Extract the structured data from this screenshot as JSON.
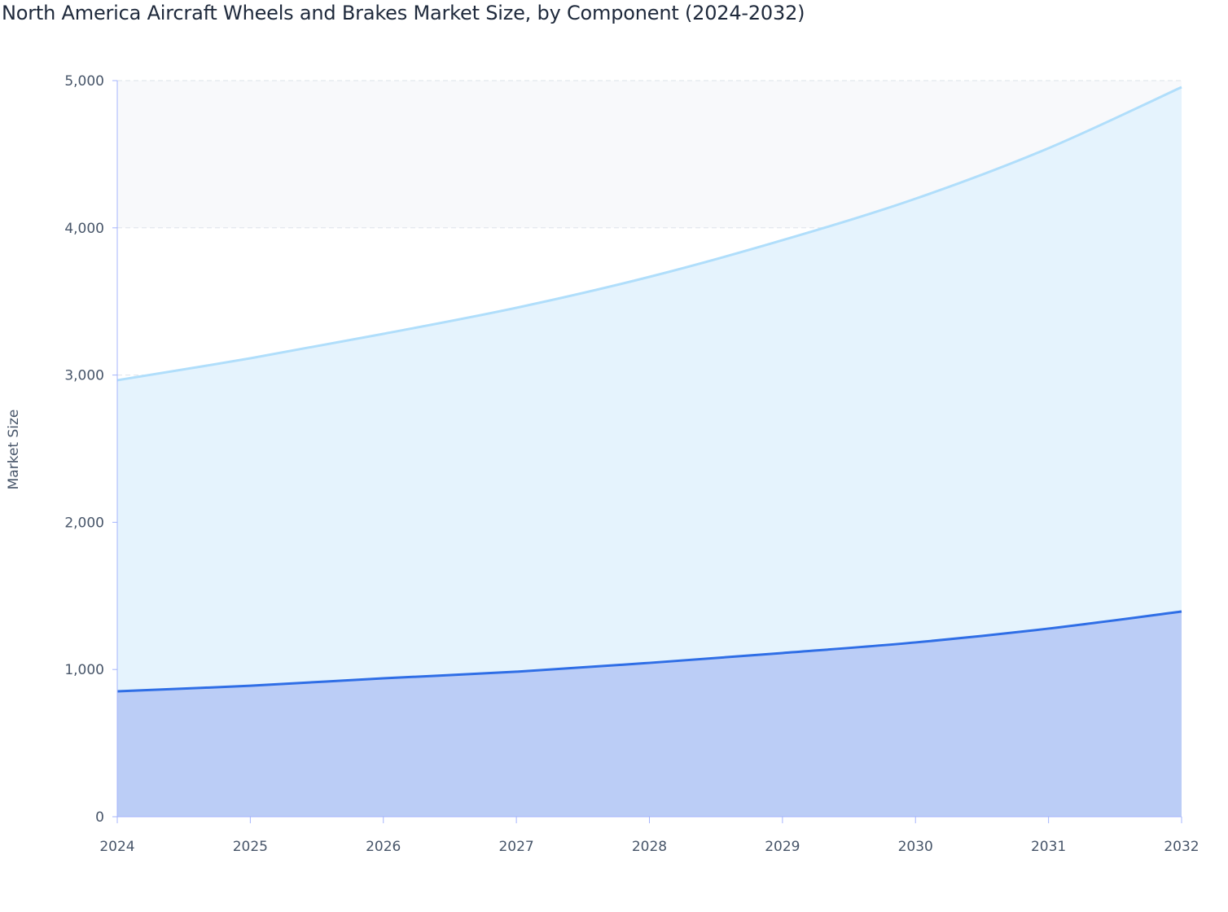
{
  "chart_data": {
    "type": "area",
    "stacked": true,
    "title": "North America Aircraft Wheels and Brakes Market Size, by Component (2024-2032)",
    "xlabel": "",
    "ylabel": "Market Size",
    "categories": [
      "2024",
      "2025",
      "2026",
      "2027",
      "2028",
      "2029",
      "2030",
      "2031",
      "2032"
    ],
    "ylim": [
      0,
      5000
    ],
    "yticks": [
      0,
      1000,
      2000,
      3000,
      4000,
      5000
    ],
    "ytick_labels": [
      "0",
      "1,000",
      "2,000",
      "3,000",
      "4,000",
      "5,000"
    ],
    "grid": true,
    "legend": "none",
    "series": [
      {
        "values": [
          852,
          890,
          940,
          985,
          1045,
          1112,
          1184,
          1278,
          1394
        ],
        "line_color": "#2f6ee6",
        "fill_color": "#bbcdf6"
      },
      {
        "values": [
          2113,
          2224,
          2340,
          2472,
          2622,
          2804,
          3014,
          3263,
          3562
        ],
        "line_color": "#b0defb",
        "fill_color": "#e5f3fd"
      }
    ]
  }
}
